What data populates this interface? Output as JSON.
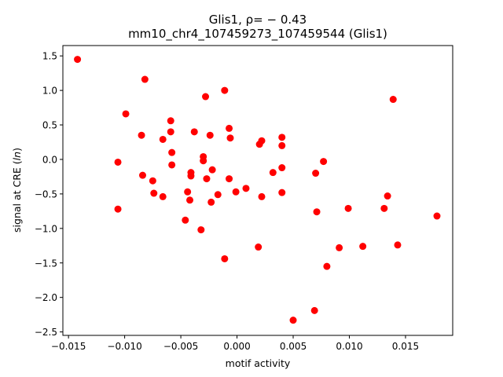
{
  "chart_data": {
    "type": "scatter",
    "title_line1": "Glis1, ρ= − 0.43",
    "title_line2": "mm10_chr4_107459273_107459544 (Glis1)",
    "xlabel": "motif activity",
    "ylabel": "signal at CRE (ln)",
    "xlim": [
      -0.0155,
      0.0192
    ],
    "ylim": [
      -2.55,
      1.65
    ],
    "xticks": [
      {
        "value": -0.015,
        "label": "−0.015"
      },
      {
        "value": -0.01,
        "label": "−0.010"
      },
      {
        "value": -0.005,
        "label": "−0.005"
      },
      {
        "value": 0.0,
        "label": "0.000"
      },
      {
        "value": 0.005,
        "label": "0.005"
      },
      {
        "value": 0.01,
        "label": "0.010"
      },
      {
        "value": 0.015,
        "label": "0.015"
      }
    ],
    "yticks": [
      {
        "value": 1.5,
        "label": "1.5"
      },
      {
        "value": 1.0,
        "label": "1.0"
      },
      {
        "value": 0.5,
        "label": "0.5"
      },
      {
        "value": 0.0,
        "label": "0.0"
      },
      {
        "value": -0.5,
        "label": "−0.5"
      },
      {
        "value": -1.0,
        "label": "−1.0"
      },
      {
        "value": -1.5,
        "label": "−1.5"
      },
      {
        "value": -2.0,
        "label": "−2.0"
      },
      {
        "value": -2.5,
        "label": "−2.5"
      }
    ],
    "grid": false,
    "legend": "none",
    "marker_color": "#ff0000",
    "points": [
      {
        "x": -0.0142,
        "y": 1.45
      },
      {
        "x": -0.0106,
        "y": -0.04
      },
      {
        "x": -0.0106,
        "y": -0.72
      },
      {
        "x": -0.0099,
        "y": 0.66
      },
      {
        "x": -0.0085,
        "y": 0.35
      },
      {
        "x": -0.0084,
        "y": -0.23
      },
      {
        "x": -0.0082,
        "y": 1.16
      },
      {
        "x": -0.0075,
        "y": -0.31
      },
      {
        "x": -0.0074,
        "y": -0.49
      },
      {
        "x": -0.0066,
        "y": 0.29
      },
      {
        "x": -0.0066,
        "y": -0.54
      },
      {
        "x": -0.0059,
        "y": 0.56
      },
      {
        "x": -0.0059,
        "y": 0.4
      },
      {
        "x": -0.0058,
        "y": 0.1
      },
      {
        "x": -0.0058,
        "y": -0.08
      },
      {
        "x": -0.0046,
        "y": -0.88
      },
      {
        "x": -0.0044,
        "y": -0.47
      },
      {
        "x": -0.0042,
        "y": -0.59
      },
      {
        "x": -0.0041,
        "y": -0.19
      },
      {
        "x": -0.0041,
        "y": -0.24
      },
      {
        "x": -0.0038,
        "y": 0.4
      },
      {
        "x": -0.0032,
        "y": -1.02
      },
      {
        "x": -0.003,
        "y": 0.04
      },
      {
        "x": -0.003,
        "y": -0.02
      },
      {
        "x": -0.0028,
        "y": 0.91
      },
      {
        "x": -0.0027,
        "y": -0.28
      },
      {
        "x": -0.0024,
        "y": 0.35
      },
      {
        "x": -0.0023,
        "y": -0.62
      },
      {
        "x": -0.0022,
        "y": -0.15
      },
      {
        "x": -0.0017,
        "y": -0.51
      },
      {
        "x": -0.0011,
        "y": 1.0
      },
      {
        "x": -0.0011,
        "y": -1.44
      },
      {
        "x": -0.0007,
        "y": 0.45
      },
      {
        "x": -0.0007,
        "y": -0.28
      },
      {
        "x": -0.0006,
        "y": 0.31
      },
      {
        "x": -0.0001,
        "y": -0.47
      },
      {
        "x": 0.0008,
        "y": -0.42
      },
      {
        "x": 0.0019,
        "y": -1.27
      },
      {
        "x": 0.002,
        "y": 0.22
      },
      {
        "x": 0.0022,
        "y": 0.27
      },
      {
        "x": 0.0022,
        "y": -0.54
      },
      {
        "x": 0.0032,
        "y": -0.19
      },
      {
        "x": 0.004,
        "y": 0.32
      },
      {
        "x": 0.004,
        "y": 0.2
      },
      {
        "x": 0.004,
        "y": -0.12
      },
      {
        "x": 0.004,
        "y": -0.48
      },
      {
        "x": 0.005,
        "y": -2.33
      },
      {
        "x": 0.0069,
        "y": -2.19
      },
      {
        "x": 0.007,
        "y": -0.2
      },
      {
        "x": 0.0071,
        "y": -0.76
      },
      {
        "x": 0.0077,
        "y": -0.03
      },
      {
        "x": 0.008,
        "y": -1.55
      },
      {
        "x": 0.0091,
        "y": -1.28
      },
      {
        "x": 0.0099,
        "y": -0.71
      },
      {
        "x": 0.0112,
        "y": -1.26
      },
      {
        "x": 0.0131,
        "y": -0.71
      },
      {
        "x": 0.0134,
        "y": -0.53
      },
      {
        "x": 0.0139,
        "y": 0.87
      },
      {
        "x": 0.0143,
        "y": -1.24
      },
      {
        "x": 0.0178,
        "y": -0.82
      }
    ]
  }
}
